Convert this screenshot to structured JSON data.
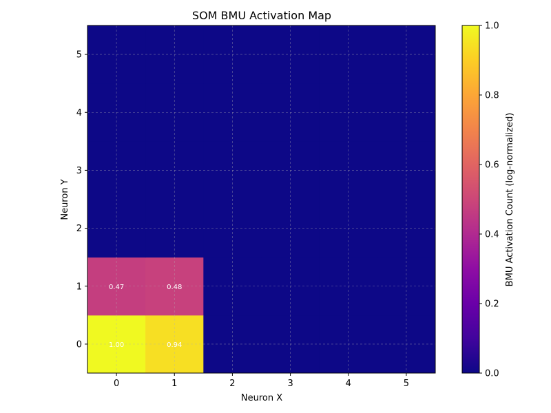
{
  "chart_data": {
    "type": "heatmap",
    "title": "SOM BMU Activation Map",
    "xlabel": "Neuron X",
    "ylabel": "Neuron Y",
    "x_categories": [
      "0",
      "1",
      "2",
      "3",
      "4",
      "5"
    ],
    "y_categories": [
      "0",
      "1",
      "2",
      "3",
      "4",
      "5"
    ],
    "values": [
      [
        1.0,
        0.94,
        0.0,
        0.0,
        0.0,
        0.0
      ],
      [
        0.47,
        0.48,
        0.0,
        0.0,
        0.0,
        0.0
      ],
      [
        0.0,
        0.0,
        0.0,
        0.0,
        0.0,
        0.0
      ],
      [
        0.0,
        0.0,
        0.0,
        0.0,
        0.0,
        0.0
      ],
      [
        0.0,
        0.0,
        0.0,
        0.0,
        0.0,
        0.0
      ],
      [
        0.0,
        0.0,
        0.0,
        0.0,
        0.0,
        0.0
      ]
    ],
    "cell_labels": [
      [
        "1.00",
        "0.94",
        "",
        "",
        "",
        ""
      ],
      [
        "0.47",
        "0.48",
        "",
        "",
        "",
        ""
      ],
      [
        "",
        "",
        "",
        "",
        "",
        ""
      ],
      [
        "",
        "",
        "",
        "",
        "",
        ""
      ],
      [
        "",
        "",
        "",
        "",
        "",
        ""
      ],
      [
        "",
        "",
        "",
        "",
        "",
        ""
      ]
    ],
    "colormap": "plasma",
    "grid": true,
    "colorbar": {
      "label": "BMU Activation Count (log-normalized)",
      "range": [
        0.0,
        1.0
      ],
      "ticks": [
        "0.0",
        "0.2",
        "0.4",
        "0.6",
        "0.8",
        "1.0"
      ]
    }
  }
}
